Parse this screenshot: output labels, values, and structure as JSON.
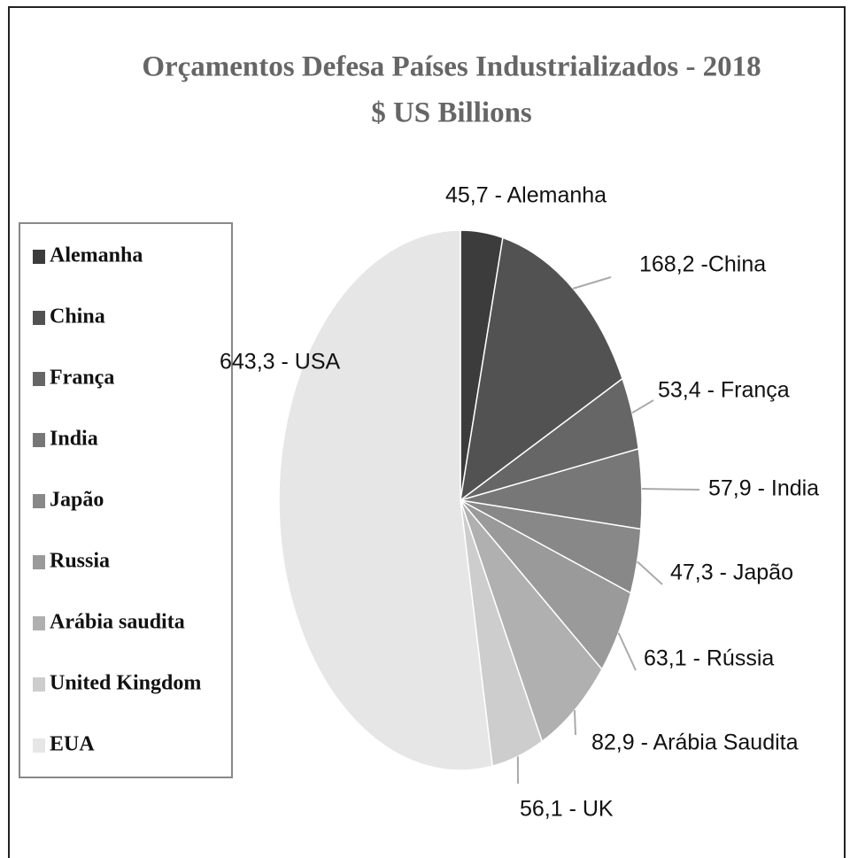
{
  "chart_data": {
    "type": "pie",
    "title": "Orçamentos Defesa Países Industrializados - 2018",
    "subtitle": "$ US Billions",
    "categories": [
      "Alemanha",
      "China",
      "França",
      "India",
      "Japão",
      "Russia",
      "Arábia saudita",
      "United Kingdom",
      "EUA"
    ],
    "values": [
      45.7,
      168.2,
      53.4,
      57.9,
      47.3,
      63.1,
      82.9,
      56.1,
      643.3
    ],
    "value_labels": [
      "45,7 - Alemanha",
      "168,2 -China",
      "53,4 - França",
      "57,9 - India",
      "47,3 - Japão",
      "63,1 - Rússia",
      "82,9 - Arábia Saudita",
      "56,1 - UK",
      "643,3 - USA"
    ],
    "colors": [
      "#3c3c3c",
      "#525252",
      "#666666",
      "#777777",
      "#888888",
      "#9a9a9a",
      "#b0b0b0",
      "#cdcdcd",
      "#e6e6e6"
    ],
    "legend": "left"
  }
}
